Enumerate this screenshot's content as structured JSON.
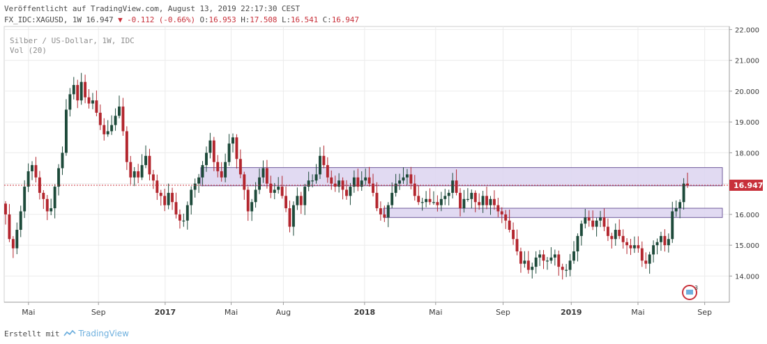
{
  "header": {
    "line1": "Veröffentlicht auf TradingView.com, August 13, 2019 22:17:30 CEST",
    "symbol": "FX_IDC:XAGUSD, 1W 16.947",
    "change": "▼ -0.112 (-0.66%)",
    "ohlc": [
      {
        "label": "O:",
        "value": "16.953"
      },
      {
        "label": "H:",
        "value": "17.508"
      },
      {
        "label": "L:",
        "value": "16.541"
      },
      {
        "label": "C:",
        "value": "16.947"
      }
    ]
  },
  "legend": {
    "title": "Silber / US-Dollar, 1W, IDC",
    "volume": "Vol (20)"
  },
  "footer": {
    "created_with": "Erstellt mit",
    "brand": "TradingView"
  },
  "colors": {
    "up": "#1d4a3a",
    "down": "#b3262e",
    "zone_fill": "#dcd3f0",
    "zone_stroke": "#6f5a9a",
    "price_line": "#c8303a",
    "price_label_bg": "#c8303a"
  },
  "chart_data": {
    "type": "candlestick",
    "title": "Silber / US-Dollar, 1W, IDC",
    "symbol": "XAGUSD",
    "interval": "1W",
    "y_axis": {
      "ticks": [
        "22.000",
        "21.000",
        "20.000",
        "19.000",
        "18.000",
        "17.000",
        "16.000",
        "15.000",
        "14.000"
      ],
      "range": [
        13.15,
        22.1
      ]
    },
    "x_axis": {
      "ticks": [
        {
          "label": "Mai",
          "bold": false
        },
        {
          "label": "Sep",
          "bold": false
        },
        {
          "label": "2017",
          "bold": true
        },
        {
          "label": "Mai",
          "bold": false
        },
        {
          "label": "Aug",
          "bold": false
        },
        {
          "label": "2018",
          "bold": true
        },
        {
          "label": "Mai",
          "bold": false
        },
        {
          "label": "Sep",
          "bold": false
        },
        {
          "label": "2019",
          "bold": true
        },
        {
          "label": "Mai",
          "bold": false
        },
        {
          "label": "Sep",
          "bold": false
        }
      ]
    },
    "current_price": "16.947",
    "zones": [
      {
        "from": 16.93,
        "to": 17.52
      },
      {
        "from": 15.9,
        "to": 16.2
      }
    ],
    "close_series": [
      16.0,
      15.2,
      14.9,
      15.5,
      16.1,
      16.9,
      17.4,
      17.6,
      17.2,
      16.7,
      16.5,
      16.1,
      16.2,
      16.9,
      17.5,
      18.0,
      19.4,
      19.9,
      20.2,
      19.7,
      20.3,
      19.8,
      19.6,
      19.7,
      19.3,
      18.9,
      18.6,
      18.7,
      18.9,
      19.2,
      19.5,
      18.7,
      17.7,
      17.2,
      17.4,
      17.2,
      17.6,
      17.9,
      17.3,
      17.1,
      16.7,
      16.6,
      16.3,
      16.7,
      16.4,
      16.0,
      15.8,
      15.8,
      16.3,
      16.8,
      17.0,
      17.2,
      17.6,
      18.0,
      18.4,
      17.7,
      17.4,
      17.2,
      17.7,
      18.3,
      18.5,
      17.8,
      17.3,
      16.8,
      16.1,
      16.4,
      16.8,
      17.2,
      17.5,
      17.0,
      16.7,
      16.8,
      16.9,
      16.6,
      16.2,
      15.6,
      16.3,
      16.6,
      16.3,
      16.9,
      17.1,
      17.1,
      17.3,
      17.9,
      17.6,
      17.2,
      17.0,
      16.9,
      17.1,
      16.8,
      16.6,
      16.9,
      17.2,
      16.9,
      17.1,
      17.2,
      17.0,
      16.7,
      16.2,
      16.0,
      15.9,
      16.3,
      16.7,
      17.0,
      17.1,
      17.2,
      17.3,
      17.0,
      16.6,
      16.4,
      16.4,
      16.5,
      16.4,
      16.4,
      16.3,
      16.5,
      16.6,
      16.7,
      17.1,
      16.7,
      16.2,
      16.5,
      16.5,
      16.7,
      16.4,
      16.3,
      16.6,
      16.3,
      16.5,
      16.3,
      16.1,
      16.0,
      15.8,
      15.5,
      15.2,
      14.8,
      14.4,
      14.5,
      14.2,
      14.3,
      14.6,
      14.7,
      14.5,
      14.5,
      14.6,
      14.7,
      14.3,
      14.2,
      14.2,
      14.5,
      14.8,
      15.3,
      15.7,
      15.9,
      15.8,
      15.6,
      15.8,
      15.9,
      15.6,
      15.3,
      15.2,
      15.5,
      15.3,
      15.1,
      15.0,
      14.9,
      15.0,
      14.9,
      14.5,
      14.4,
      14.7,
      15.0,
      15.1,
      15.3,
      15.0,
      15.2,
      16.1,
      16.2,
      16.4,
      17.0,
      16.947
    ]
  }
}
